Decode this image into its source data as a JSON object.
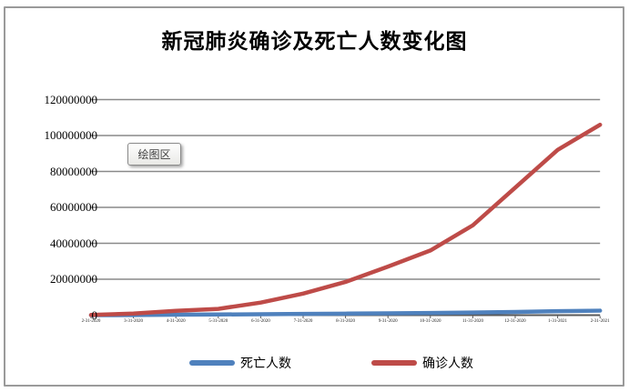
{
  "window": {
    "background": "#ffffff",
    "border_color": "#9a9a9a"
  },
  "tooltip": {
    "label": "绘图区"
  },
  "legend": {
    "deaths_label": "死亡人数",
    "confirmed_label": "确诊人数"
  },
  "chart_data": {
    "type": "line",
    "title": "新冠肺炎确诊及死亡人数变化图",
    "xlabel": "",
    "ylabel": "",
    "ylim": [
      0,
      120000000
    ],
    "grid": true,
    "gridline_color": "#898989",
    "axis_color": "#595959",
    "legend_position": "bottom",
    "y_ticks": [
      120000000,
      100000000,
      80000000,
      60000000,
      40000000,
      20000000,
      0
    ],
    "categories": [
      "2-31-2020",
      "3-31-2020",
      "4-31-2020",
      "5-31-2020",
      "6-31-2020",
      "7-31-2020",
      "8-31-2020",
      "9-31-2020",
      "10-31-2020",
      "11-31-2020",
      "12-31-2020",
      "1-31-2021",
      "2-31-2021"
    ],
    "series": [
      {
        "name": "死亡人数",
        "color": "#4F81BD",
        "values": [
          3000,
          40000,
          230000,
          370000,
          500000,
          680000,
          850000,
          1000000,
          1200000,
          1450000,
          1800000,
          2200000,
          2500000
        ]
      },
      {
        "name": "确诊人数",
        "color": "#BE4B48",
        "values": [
          100000,
          900000,
          2400000,
          3500000,
          7000000,
          12000000,
          18500000,
          27000000,
          36000000,
          50000000,
          71000000,
          92000000,
          106000000
        ]
      }
    ]
  }
}
